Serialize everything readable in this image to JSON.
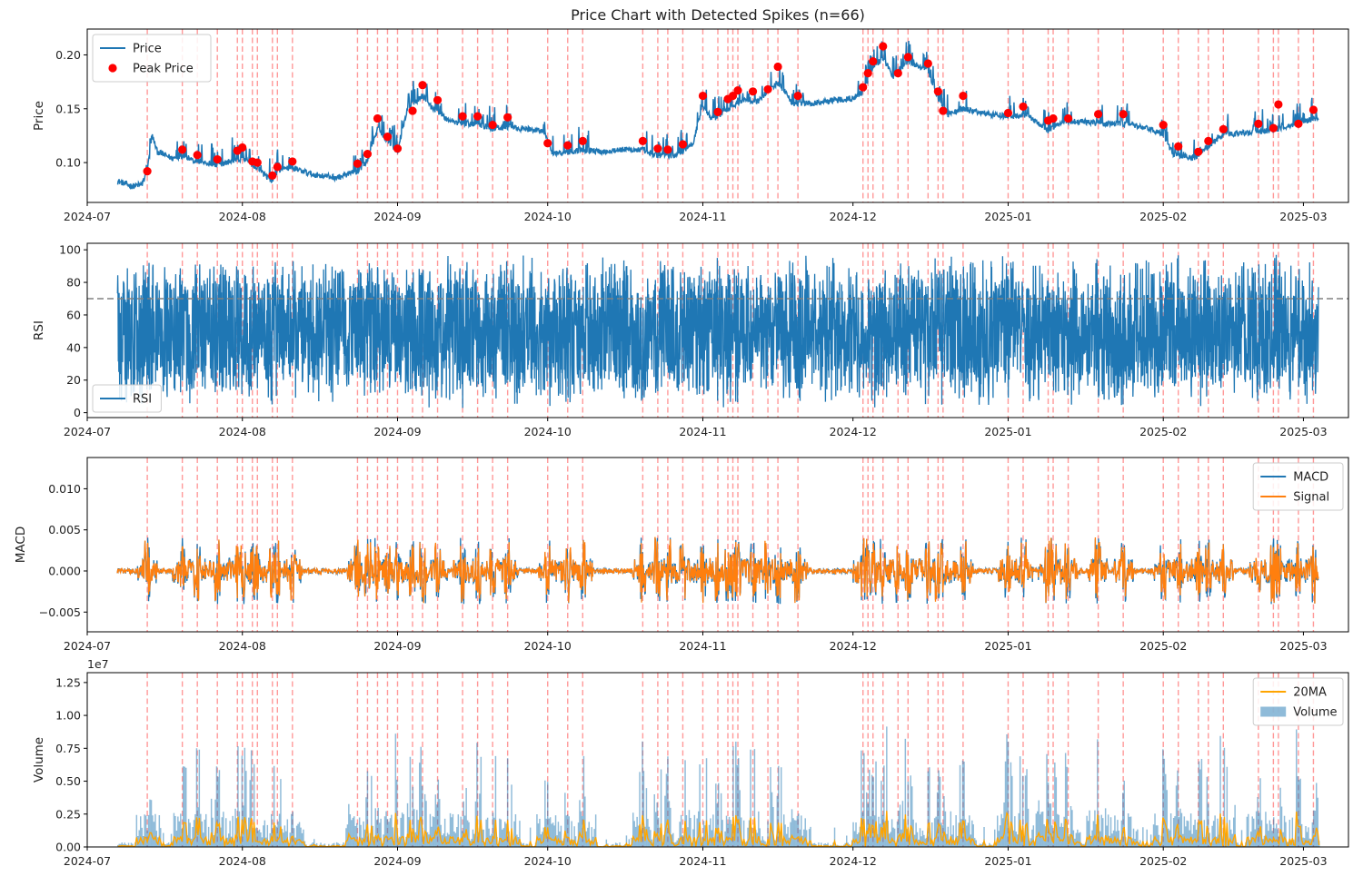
{
  "chart_data": {
    "title": "Price Chart with Detected Spikes (n=66)",
    "x_ticks": [
      "2024-07",
      "2024-08",
      "2024-09",
      "2024-10",
      "2024-11",
      "2024-12",
      "2025-01",
      "2025-02",
      "2025-03"
    ],
    "x_start": "2024-07-01",
    "x_end": "2025-03-10",
    "data_start": "2024-07-07",
    "data_end": "2025-03-04",
    "spike_line_color": "#ff9999",
    "spikes": [
      {
        "date": "2024-07-13",
        "price": 0.092
      },
      {
        "date": "2024-07-20",
        "price": 0.112
      },
      {
        "date": "2024-07-23",
        "price": 0.107
      },
      {
        "date": "2024-07-27",
        "price": 0.103
      },
      {
        "date": "2024-07-31",
        "price": 0.111
      },
      {
        "date": "2024-08-01",
        "price": 0.114
      },
      {
        "date": "2024-08-03",
        "price": 0.101
      },
      {
        "date": "2024-08-04",
        "price": 0.1
      },
      {
        "date": "2024-08-07",
        "price": 0.088
      },
      {
        "date": "2024-08-08",
        "price": 0.096
      },
      {
        "date": "2024-08-11",
        "price": 0.101
      },
      {
        "date": "2024-08-24",
        "price": 0.099
      },
      {
        "date": "2024-08-26",
        "price": 0.108
      },
      {
        "date": "2024-08-28",
        "price": 0.141
      },
      {
        "date": "2024-08-30",
        "price": 0.124
      },
      {
        "date": "2024-09-01",
        "price": 0.113
      },
      {
        "date": "2024-09-04",
        "price": 0.148
      },
      {
        "date": "2024-09-06",
        "price": 0.172
      },
      {
        "date": "2024-09-09",
        "price": 0.158
      },
      {
        "date": "2024-09-14",
        "price": 0.143
      },
      {
        "date": "2024-09-17",
        "price": 0.143
      },
      {
        "date": "2024-09-20",
        "price": 0.135
      },
      {
        "date": "2024-09-23",
        "price": 0.142
      },
      {
        "date": "2024-10-01",
        "price": 0.118
      },
      {
        "date": "2024-10-05",
        "price": 0.116
      },
      {
        "date": "2024-10-08",
        "price": 0.12
      },
      {
        "date": "2024-10-20",
        "price": 0.12
      },
      {
        "date": "2024-10-23",
        "price": 0.113
      },
      {
        "date": "2024-10-25",
        "price": 0.112
      },
      {
        "date": "2024-10-28",
        "price": 0.117
      },
      {
        "date": "2024-11-01",
        "price": 0.162
      },
      {
        "date": "2024-11-04",
        "price": 0.147
      },
      {
        "date": "2024-11-06",
        "price": 0.159
      },
      {
        "date": "2024-11-07",
        "price": 0.162
      },
      {
        "date": "2024-11-08",
        "price": 0.167
      },
      {
        "date": "2024-11-11",
        "price": 0.166
      },
      {
        "date": "2024-11-14",
        "price": 0.168
      },
      {
        "date": "2024-11-16",
        "price": 0.189
      },
      {
        "date": "2024-11-20",
        "price": 0.162
      },
      {
        "date": "2024-12-03",
        "price": 0.17
      },
      {
        "date": "2024-12-04",
        "price": 0.183
      },
      {
        "date": "2024-12-05",
        "price": 0.194
      },
      {
        "date": "2024-12-07",
        "price": 0.208
      },
      {
        "date": "2024-12-10",
        "price": 0.183
      },
      {
        "date": "2024-12-12",
        "price": 0.198
      },
      {
        "date": "2024-12-16",
        "price": 0.192
      },
      {
        "date": "2024-12-18",
        "price": 0.166
      },
      {
        "date": "2024-12-19",
        "price": 0.148
      },
      {
        "date": "2024-12-23",
        "price": 0.162
      },
      {
        "date": "2025-01-01",
        "price": 0.146
      },
      {
        "date": "2025-01-04",
        "price": 0.152
      },
      {
        "date": "2025-01-09",
        "price": 0.139
      },
      {
        "date": "2025-01-10",
        "price": 0.141
      },
      {
        "date": "2025-01-13",
        "price": 0.141
      },
      {
        "date": "2025-01-19",
        "price": 0.145
      },
      {
        "date": "2025-01-24",
        "price": 0.145
      },
      {
        "date": "2025-02-01",
        "price": 0.135
      },
      {
        "date": "2025-02-04",
        "price": 0.115
      },
      {
        "date": "2025-02-08",
        "price": 0.11
      },
      {
        "date": "2025-02-10",
        "price": 0.12
      },
      {
        "date": "2025-02-13",
        "price": 0.131
      },
      {
        "date": "2025-02-20",
        "price": 0.136
      },
      {
        "date": "2025-02-23",
        "price": 0.132
      },
      {
        "date": "2025-02-24",
        "price": 0.154
      },
      {
        "date": "2025-02-28",
        "price": 0.136
      },
      {
        "date": "2025-03-03",
        "price": 0.149
      }
    ],
    "panels": [
      {
        "type": "line",
        "ylabel": "Price",
        "ylim": [
          0.063,
          0.224
        ],
        "yticks": [
          0.1,
          0.15,
          0.2
        ],
        "ytick_labels": [
          "0.10",
          "0.15",
          "0.20"
        ],
        "legend_position": "upper-left",
        "legend": [
          {
            "label": "Price",
            "kind": "line",
            "color": "#1f77b4"
          },
          {
            "label": "Peak Price",
            "kind": "dot",
            "color": "#ff0000"
          }
        ],
        "price_anchors": [
          [
            "2024-07-07",
            0.083
          ],
          [
            "2024-07-10",
            0.078
          ],
          [
            "2024-07-12",
            0.08
          ],
          [
            "2024-07-13",
            0.092
          ],
          [
            "2024-07-14",
            0.125
          ],
          [
            "2024-07-15",
            0.11
          ],
          [
            "2024-07-18",
            0.104
          ],
          [
            "2024-07-20",
            0.106
          ],
          [
            "2024-07-23",
            0.101
          ],
          [
            "2024-07-27",
            0.098
          ],
          [
            "2024-08-01",
            0.104
          ],
          [
            "2024-08-04",
            0.095
          ],
          [
            "2024-08-07",
            0.082
          ],
          [
            "2024-08-08",
            0.093
          ],
          [
            "2024-08-11",
            0.095
          ],
          [
            "2024-08-15",
            0.089
          ],
          [
            "2024-08-20",
            0.086
          ],
          [
            "2024-08-24",
            0.092
          ],
          [
            "2024-08-26",
            0.102
          ],
          [
            "2024-08-28",
            0.132
          ],
          [
            "2024-08-30",
            0.121
          ],
          [
            "2024-09-01",
            0.11
          ],
          [
            "2024-09-03",
            0.15
          ],
          [
            "2024-09-06",
            0.162
          ],
          [
            "2024-09-08",
            0.15
          ],
          [
            "2024-09-11",
            0.14
          ],
          [
            "2024-09-14",
            0.136
          ],
          [
            "2024-09-17",
            0.136
          ],
          [
            "2024-09-20",
            0.131
          ],
          [
            "2024-09-23",
            0.133
          ],
          [
            "2024-09-27",
            0.131
          ],
          [
            "2024-09-30",
            0.13
          ],
          [
            "2024-10-02",
            0.108
          ],
          [
            "2024-10-05",
            0.11
          ],
          [
            "2024-10-08",
            0.112
          ],
          [
            "2024-10-12",
            0.11
          ],
          [
            "2024-10-15",
            0.112
          ],
          [
            "2024-10-20",
            0.112
          ],
          [
            "2024-10-23",
            0.106
          ],
          [
            "2024-10-27",
            0.107
          ],
          [
            "2024-10-30",
            0.118
          ],
          [
            "2024-11-01",
            0.152
          ],
          [
            "2024-11-03",
            0.14
          ],
          [
            "2024-11-06",
            0.15
          ],
          [
            "2024-11-09",
            0.158
          ],
          [
            "2024-11-12",
            0.157
          ],
          [
            "2024-11-16",
            0.175
          ],
          [
            "2024-11-19",
            0.155
          ],
          [
            "2024-11-23",
            0.155
          ],
          [
            "2024-11-27",
            0.158
          ],
          [
            "2024-12-01",
            0.16
          ],
          [
            "2024-12-03",
            0.166
          ],
          [
            "2024-12-05",
            0.188
          ],
          [
            "2024-12-07",
            0.198
          ],
          [
            "2024-12-09",
            0.18
          ],
          [
            "2024-12-12",
            0.194
          ],
          [
            "2024-12-14",
            0.19
          ],
          [
            "2024-12-16",
            0.185
          ],
          [
            "2024-12-18",
            0.16
          ],
          [
            "2024-12-20",
            0.145
          ],
          [
            "2024-12-23",
            0.15
          ],
          [
            "2024-12-27",
            0.146
          ],
          [
            "2025-01-01",
            0.143
          ],
          [
            "2025-01-05",
            0.144
          ],
          [
            "2025-01-09",
            0.13
          ],
          [
            "2025-01-12",
            0.138
          ],
          [
            "2025-01-16",
            0.138
          ],
          [
            "2025-01-20",
            0.136
          ],
          [
            "2025-01-25",
            0.136
          ],
          [
            "2025-01-30",
            0.13
          ],
          [
            "2025-02-01",
            0.125
          ],
          [
            "2025-02-03",
            0.108
          ],
          [
            "2025-02-07",
            0.104
          ],
          [
            "2025-02-10",
            0.115
          ],
          [
            "2025-02-13",
            0.126
          ],
          [
            "2025-02-18",
            0.128
          ],
          [
            "2025-02-23",
            0.13
          ],
          [
            "2025-02-26",
            0.134
          ],
          [
            "2025-03-01",
            0.138
          ],
          [
            "2025-03-04",
            0.142
          ]
        ]
      },
      {
        "type": "line",
        "ylabel": "RSI",
        "ylim": [
          -3,
          104
        ],
        "yticks": [
          0,
          20,
          40,
          60,
          80,
          100
        ],
        "ytick_labels": [
          "0",
          "20",
          "40",
          "60",
          "80",
          "100"
        ],
        "threshold": 70,
        "threshold_color": "#808080",
        "legend_position": "lower-left",
        "legend": [
          {
            "label": "RSI",
            "kind": "line",
            "color": "#1f77b4"
          }
        ]
      },
      {
        "type": "line",
        "ylabel": "MACD",
        "ylim": [
          -0.0074,
          0.0138
        ],
        "yticks": [
          -0.005,
          0.0,
          0.005,
          0.01
        ],
        "ytick_labels": [
          "−0.005",
          "0.000",
          "0.005",
          "0.010"
        ],
        "legend_position": "upper-right",
        "legend": [
          {
            "label": "MACD",
            "kind": "line",
            "color": "#1f77b4"
          },
          {
            "label": "Signal",
            "kind": "line",
            "color": "#ff7f0e"
          }
        ]
      },
      {
        "type": "bar",
        "ylabel": "Volume",
        "ylim": [
          0,
          13250000
        ],
        "yticks": [
          0,
          2500000,
          5000000,
          7500000,
          10000000,
          12500000
        ],
        "ytick_labels": [
          "0.00",
          "0.25",
          "0.50",
          "0.75",
          "1.00",
          "1.25"
        ],
        "offset_text": "1e7",
        "legend_position": "upper-right",
        "legend": [
          {
            "label": "20MA",
            "kind": "line",
            "color": "#ffa500"
          },
          {
            "label": "Volume",
            "kind": "patch",
            "color": "#1f77b4"
          }
        ]
      }
    ]
  }
}
